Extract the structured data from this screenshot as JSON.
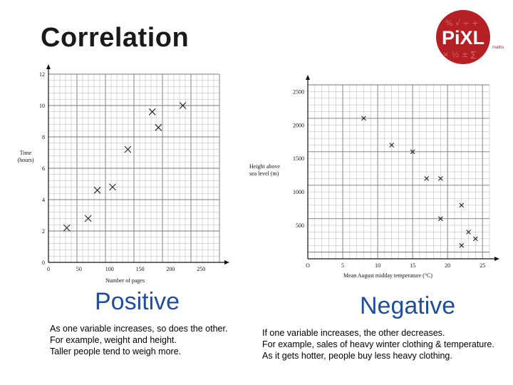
{
  "title": "Correlation",
  "logo": {
    "text": "PiXL",
    "subtext": "maths",
    "color": "#b52025"
  },
  "left": {
    "heading": "Positive",
    "heading_color": "#1f4e9b",
    "lines": [
      "As one variable increases, so does the other.",
      "For example, weight and height.",
      "Taller people tend to weigh more."
    ]
  },
  "right": {
    "heading": "Negative",
    "heading_color": "#1f4e9b",
    "lines": [
      "If one variable increases, the other decreases.",
      "For example, sales of heavy winter clothing & temperature.",
      "As it gets hotter, people buy less heavy clothing."
    ]
  },
  "chart_data": [
    {
      "type": "scatter",
      "xlabel": "Number of pages",
      "ylabel": "Time (hours)",
      "ylabel_lines": [
        "Time",
        "(hours)"
      ],
      "xlim": [
        0,
        280
      ],
      "ylim": [
        0,
        12
      ],
      "xticks": [
        0,
        50,
        100,
        150,
        200,
        250
      ],
      "yticks": [
        0,
        2,
        4,
        6,
        8,
        10,
        12
      ],
      "grid": true,
      "marker": "x",
      "points": [
        {
          "x": 30,
          "y": 2.2
        },
        {
          "x": 65,
          "y": 2.8
        },
        {
          "x": 80,
          "y": 4.6
        },
        {
          "x": 105,
          "y": 4.8
        },
        {
          "x": 130,
          "y": 7.2
        },
        {
          "x": 170,
          "y": 9.6
        },
        {
          "x": 180,
          "y": 8.6
        },
        {
          "x": 220,
          "y": 10.0
        }
      ]
    },
    {
      "type": "scatter",
      "xlabel": "Mean August midday temperature (°C)",
      "ylabel": "Height above sea level (m)",
      "ylabel_lines": [
        "Height above",
        "sea level (m)"
      ],
      "xlim": [
        0,
        26
      ],
      "ylim": [
        0,
        2600
      ],
      "xticks": [
        0,
        5,
        10,
        15,
        20,
        25
      ],
      "xtick_labels": [
        "O",
        "5",
        "10",
        "15",
        "20",
        "25"
      ],
      "yticks": [
        500,
        1000,
        1500,
        2000,
        2500
      ],
      "grid": true,
      "marker": "x",
      "points": [
        {
          "x": 8,
          "y": 2100
        },
        {
          "x": 12,
          "y": 1700
        },
        {
          "x": 15,
          "y": 1600
        },
        {
          "x": 17,
          "y": 1200
        },
        {
          "x": 19,
          "y": 1200
        },
        {
          "x": 19,
          "y": 600
        },
        {
          "x": 22,
          "y": 800
        },
        {
          "x": 22,
          "y": 200
        },
        {
          "x": 23,
          "y": 400
        },
        {
          "x": 24,
          "y": 300
        }
      ]
    }
  ]
}
